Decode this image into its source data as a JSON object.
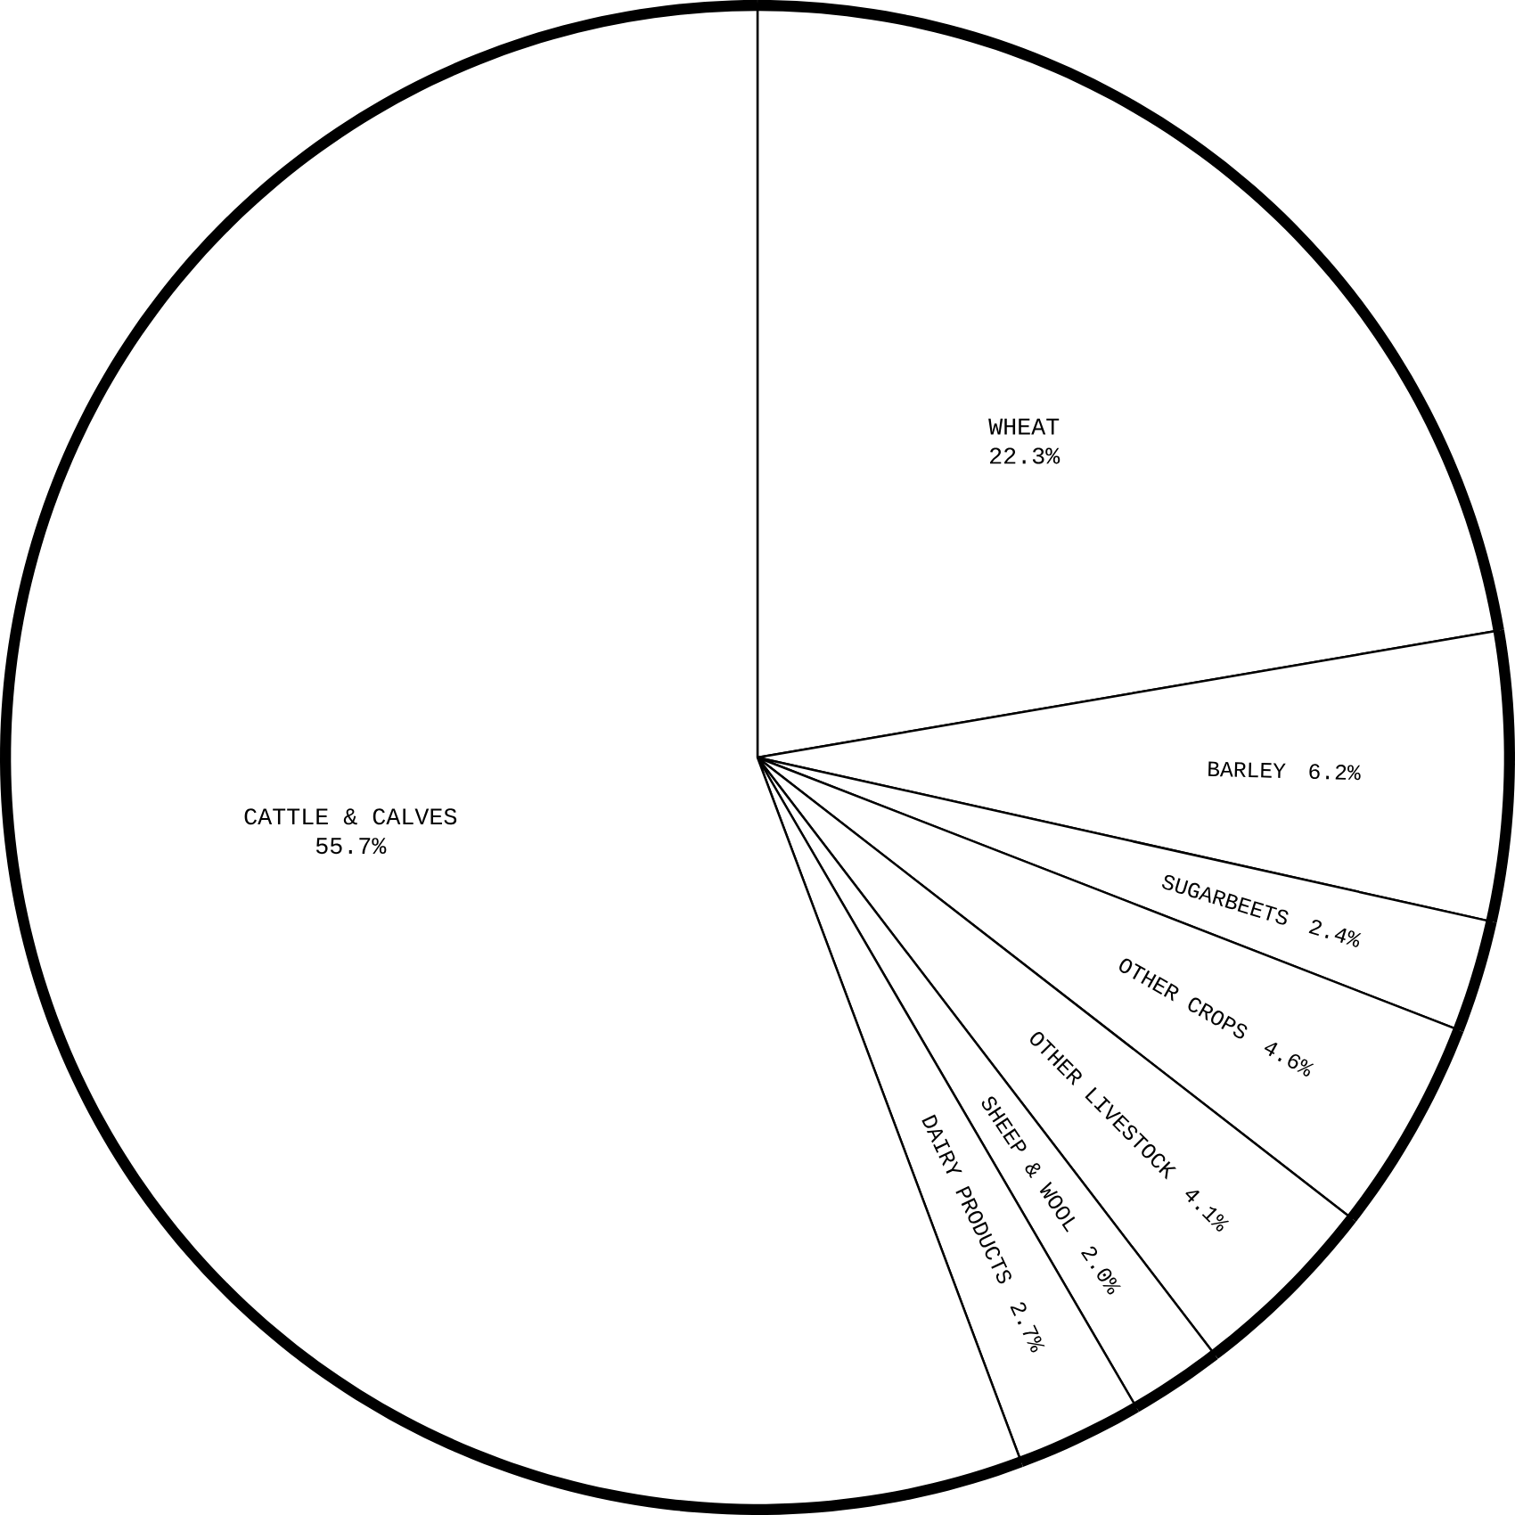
{
  "chart_data": {
    "type": "pie",
    "categories": [
      "WHEAT",
      "BARLEY",
      "SUGARBEETS",
      "OTHER CROPS",
      "OTHER LIVESTOCK",
      "SHEEP & WOOL",
      "DAIRY PRODUCTS",
      "CATTLE & CALVES"
    ],
    "values": [
      22.3,
      6.2,
      2.4,
      4.6,
      4.1,
      2.0,
      2.7,
      55.7
    ],
    "value_labels": [
      "22.3%",
      "6.2%",
      "2.4%",
      "4.6%",
      "4.1%",
      "2.0%",
      "2.7%",
      "55.7%"
    ],
    "colors": [
      "#ffffff",
      "#ffffff",
      "#ffffff",
      "#ffffff",
      "#ffffff",
      "#ffffff",
      "#ffffff",
      "#ffffff"
    ]
  }
}
